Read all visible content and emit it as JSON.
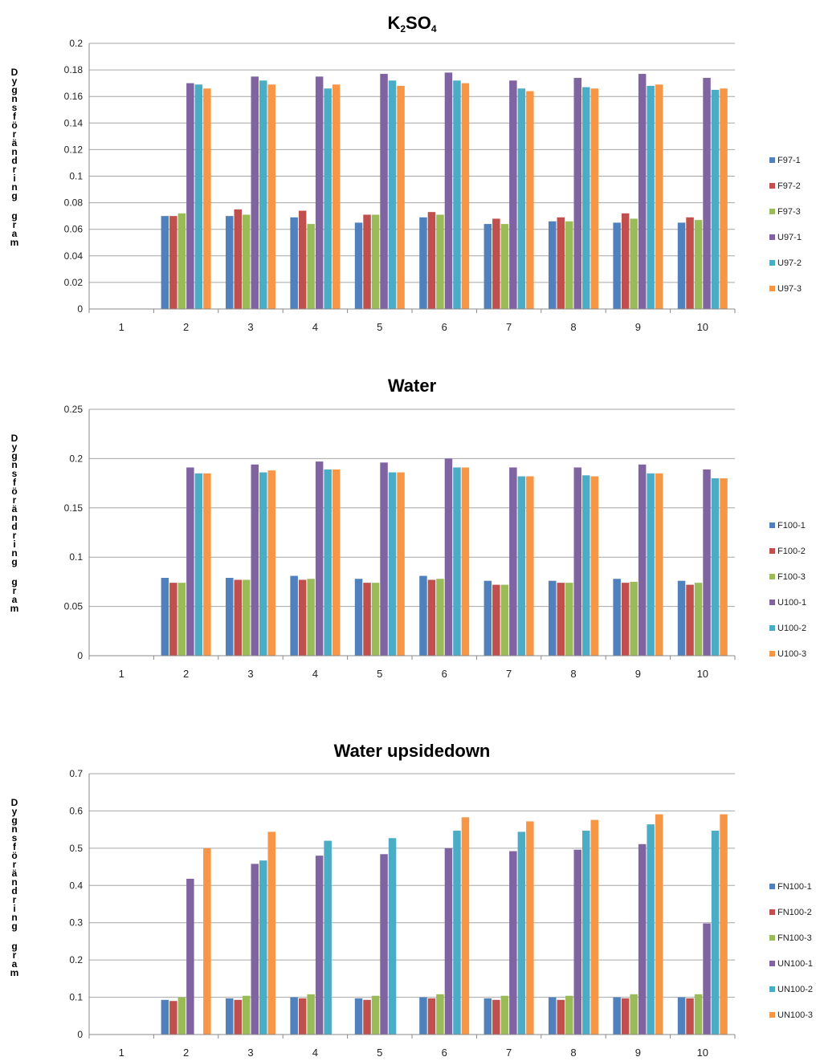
{
  "chart_data": [
    {
      "type": "bar",
      "title": "K2SO4",
      "title_main": "K",
      "title_sub1": "2",
      "title_mid": "SO",
      "title_sub2": "4",
      "ylabel": "Dygnsförändring gram",
      "xlabel": "",
      "categories": [
        "1",
        "2",
        "3",
        "4",
        "5",
        "6",
        "7",
        "8",
        "9",
        "10"
      ],
      "ylim": [
        0,
        0.2
      ],
      "yticks": [
        "0",
        "0.02",
        "0.04",
        "0.06",
        "0.08",
        "0.1",
        "0.12",
        "0.14",
        "0.16",
        "0.18",
        "0.2"
      ],
      "grid": true,
      "legend_position": "right",
      "series": [
        {
          "name": "F97-1",
          "color": "#4f81bd",
          "values": [
            null,
            0.07,
            0.07,
            0.069,
            0.065,
            0.069,
            0.064,
            0.066,
            0.065,
            0.065
          ]
        },
        {
          "name": "F97-2",
          "color": "#c0504d",
          "values": [
            null,
            0.07,
            0.075,
            0.074,
            0.071,
            0.073,
            0.068,
            0.069,
            0.072,
            0.069
          ]
        },
        {
          "name": "F97-3",
          "color": "#9bbb59",
          "values": [
            null,
            0.072,
            0.071,
            0.064,
            0.071,
            0.071,
            0.064,
            0.066,
            0.068,
            0.067
          ]
        },
        {
          "name": "U97-1",
          "color": "#8064a2",
          "values": [
            null,
            0.17,
            0.175,
            0.175,
            0.177,
            0.178,
            0.172,
            0.174,
            0.177,
            0.174
          ]
        },
        {
          "name": "U97-2",
          "color": "#4bacc6",
          "values": [
            null,
            0.169,
            0.172,
            0.166,
            0.172,
            0.172,
            0.166,
            0.167,
            0.168,
            0.165
          ]
        },
        {
          "name": "U97-3",
          "color": "#f79646",
          "values": [
            null,
            0.166,
            0.169,
            0.169,
            0.168,
            0.17,
            0.164,
            0.166,
            0.169,
            0.166
          ]
        }
      ]
    },
    {
      "type": "bar",
      "title": "Water",
      "ylabel": "Dygnsförändring gram",
      "xlabel": "",
      "categories": [
        "1",
        "2",
        "3",
        "4",
        "5",
        "6",
        "7",
        "8",
        "9",
        "10"
      ],
      "ylim": [
        0,
        0.25
      ],
      "yticks": [
        "0",
        "0.05",
        "0.1",
        "0.15",
        "0.2",
        "0.25"
      ],
      "grid": true,
      "legend_position": "right",
      "series": [
        {
          "name": "F100-1",
          "color": "#4f81bd",
          "values": [
            null,
            0.079,
            0.079,
            0.081,
            0.078,
            0.081,
            0.076,
            0.076,
            0.078,
            0.076
          ]
        },
        {
          "name": "F100-2",
          "color": "#c0504d",
          "values": [
            null,
            0.074,
            0.077,
            0.077,
            0.074,
            0.077,
            0.072,
            0.074,
            0.074,
            0.072
          ]
        },
        {
          "name": "F100-3",
          "color": "#9bbb59",
          "values": [
            null,
            0.074,
            0.077,
            0.078,
            0.074,
            0.078,
            0.072,
            0.074,
            0.075,
            0.074
          ]
        },
        {
          "name": "U100-1",
          "color": "#8064a2",
          "values": [
            null,
            0.191,
            0.194,
            0.197,
            0.196,
            0.2,
            0.191,
            0.191,
            0.194,
            0.189
          ]
        },
        {
          "name": "U100-2",
          "color": "#4bacc6",
          "values": [
            null,
            0.185,
            0.186,
            0.189,
            0.186,
            0.191,
            0.182,
            0.183,
            0.185,
            0.18
          ]
        },
        {
          "name": "U100-3",
          "color": "#f79646",
          "values": [
            null,
            0.185,
            0.188,
            0.189,
            0.186,
            0.191,
            0.182,
            0.182,
            0.185,
            0.18
          ]
        }
      ]
    },
    {
      "type": "bar",
      "title": "Water upsidedown",
      "ylabel": "Dygnsförändring gram",
      "xlabel": "",
      "categories": [
        "1",
        "2",
        "3",
        "4",
        "5",
        "6",
        "7",
        "8",
        "9",
        "10"
      ],
      "ylim": [
        0,
        0.7
      ],
      "yticks": [
        "0",
        "0.1",
        "0.2",
        "0.3",
        "0.4",
        "0.5",
        "0.6",
        "0.7"
      ],
      "grid": true,
      "legend_position": "right",
      "series": [
        {
          "name": "FN100-1",
          "color": "#4f81bd",
          "values": [
            null,
            0.093,
            0.097,
            0.1,
            0.097,
            0.1,
            0.097,
            0.1,
            0.1,
            0.1
          ]
        },
        {
          "name": "FN100-2",
          "color": "#c0504d",
          "values": [
            null,
            0.09,
            0.093,
            0.097,
            0.093,
            0.097,
            0.093,
            0.093,
            0.097,
            0.097
          ]
        },
        {
          "name": "FN100-3",
          "color": "#9bbb59",
          "values": [
            null,
            0.1,
            0.104,
            0.108,
            0.104,
            0.108,
            0.104,
            0.104,
            0.108,
            0.108
          ]
        },
        {
          "name": "UN100-1",
          "color": "#8064a2",
          "values": [
            null,
            0.418,
            0.458,
            0.48,
            0.484,
            0.5,
            0.492,
            0.496,
            0.511,
            0.298
          ]
        },
        {
          "name": "UN100-2",
          "color": "#4bacc6",
          "values": [
            null,
            null,
            0.467,
            0.52,
            0.527,
            0.547,
            0.544,
            0.547,
            0.564,
            0.547
          ]
        },
        {
          "name": "UN100-3",
          "color": "#f79646",
          "values": [
            null,
            0.5,
            0.544,
            null,
            null,
            0.583,
            0.572,
            0.576,
            0.591,
            0.591
          ]
        }
      ]
    }
  ]
}
